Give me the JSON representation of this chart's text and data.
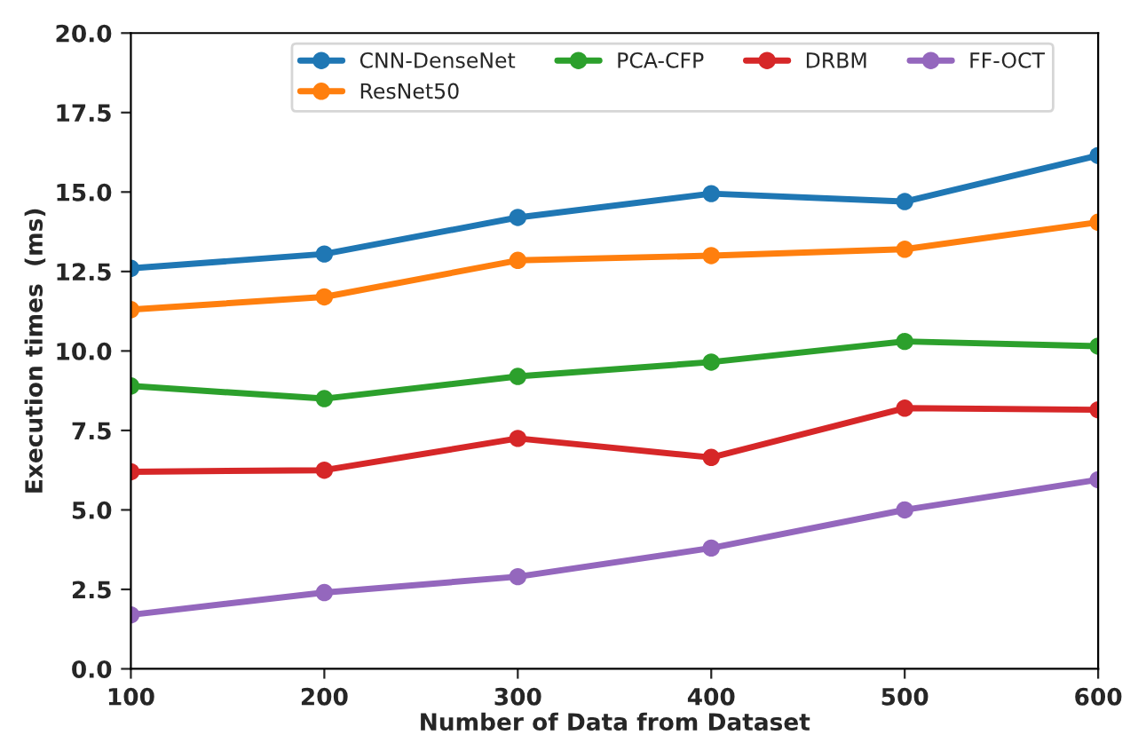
{
  "chart_data": {
    "type": "line",
    "xlabel": "Number of Data from Dataset",
    "ylabel": "Execution times  (ms)",
    "x": [
      100,
      200,
      300,
      400,
      500,
      600
    ],
    "series": [
      {
        "name": "CNN-DenseNet",
        "color": "#1f77b4",
        "values": [
          12.6,
          13.05,
          14.2,
          14.95,
          14.7,
          16.15
        ]
      },
      {
        "name": "ResNet50",
        "color": "#ff7f0e",
        "values": [
          11.3,
          11.7,
          12.85,
          13.0,
          13.2,
          14.05
        ]
      },
      {
        "name": "PCA-CFP",
        "color": "#2ca02c",
        "values": [
          8.9,
          8.5,
          9.2,
          9.65,
          10.3,
          10.15
        ]
      },
      {
        "name": "DRBM",
        "color": "#d62728",
        "values": [
          6.2,
          6.25,
          7.25,
          6.65,
          8.2,
          8.15
        ]
      },
      {
        "name": "FF-OCT",
        "color": "#9467bd",
        "values": [
          1.7,
          2.4,
          2.9,
          3.8,
          5.0,
          5.95
        ]
      }
    ],
    "xlim": [
      100,
      600
    ],
    "xticks": [
      100,
      200,
      300,
      400,
      500,
      600
    ],
    "ylim": [
      0,
      20
    ],
    "yticks": [
      {
        "value": 0,
        "label": "0.0"
      },
      {
        "value": 2.5,
        "label": "2.5"
      },
      {
        "value": 5,
        "label": "5.0"
      },
      {
        "value": 7.5,
        "label": "7.5"
      },
      {
        "value": 10,
        "label": "10.0"
      },
      {
        "value": 12.5,
        "label": "12.5"
      },
      {
        "value": 15,
        "label": "15.0"
      },
      {
        "value": 17.5,
        "label": "17.5"
      },
      {
        "value": 20,
        "label": "20.0"
      }
    ],
    "legend": "top",
    "marker": "circle",
    "line_style": "solid",
    "grid": false
  }
}
